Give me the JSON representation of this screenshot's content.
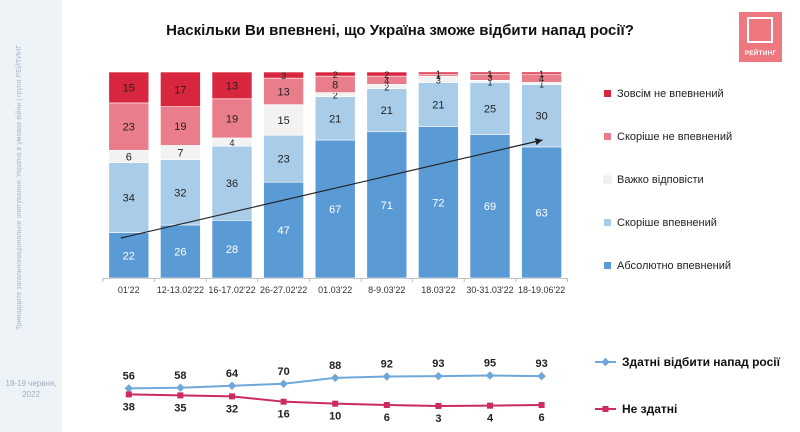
{
  "title": "Наскільки Ви впевнені, що Україна зможе відбити напад росії?",
  "logo_text": "РЕЙТИНГ",
  "sidebar": {
    "caption": "Тринадцяте загальнонаціональне опитування: Україна в умовах війни | група РЕЙТИНГ",
    "date": "18-19 червня, 2022"
  },
  "colors": {
    "abs_yes": "#5b9bd5",
    "rather_yes": "#a9cde9",
    "hard": "#f2f2f2",
    "rather_no": "#e97d8c",
    "abs_no": "#d7263d",
    "line_yes": "#6fa8d8",
    "line_no": "#cc2b5e"
  },
  "chart_data": [
    {
      "type": "bar",
      "stacked": true,
      "categories": [
        "01'22",
        "12-13.02'22",
        "16-17.02'22",
        "26-27.02'22",
        "01.03'22",
        "8-9.03'22",
        "18.03'22",
        "30-31.03'22",
        "18-19.06'22"
      ],
      "series": [
        {
          "name": "Абсолютно впевнений",
          "color": "#5b9bd5",
          "values": [
            22,
            26,
            28,
            47,
            67,
            71,
            72,
            69,
            63
          ]
        },
        {
          "name": "Скоріше впевнений",
          "color": "#a9cde9",
          "values": [
            34,
            32,
            36,
            23,
            21,
            21,
            21,
            25,
            30
          ]
        },
        {
          "name": "Важко відповісти",
          "color": "#f2f2f2",
          "values": [
            6,
            7,
            4,
            15,
            2,
            2,
            3,
            1,
            1
          ]
        },
        {
          "name": "Скоріше не впевнений",
          "color": "#e97d8c",
          "values": [
            23,
            19,
            19,
            13,
            8,
            4,
            1,
            3,
            4
          ]
        },
        {
          "name": "Зовсім не впевнений",
          "color": "#d7263d",
          "values": [
            15,
            17,
            13,
            3,
            2,
            2,
            1,
            1,
            1
          ]
        }
      ],
      "legend_order": [
        "Зовсім не впевнений",
        "Скоріше не впевнений",
        "Важко відповісти",
        "Скоріше впевнений",
        "Абсолютно впевнений"
      ],
      "legend": "right",
      "ylim": [
        0,
        100
      ],
      "trend_arrow": true
    },
    {
      "type": "line",
      "categories": [
        "01'22",
        "12-13.02'22",
        "16-17.02'22",
        "26-27.02'22",
        "01.03'22",
        "8-9.03'22",
        "18.03'22",
        "30-31.03'22",
        "18-19.06'22"
      ],
      "series": [
        {
          "name": "Здатні відбити напад росії",
          "color": "#6fa8d8",
          "values": [
            56,
            58,
            64,
            70,
            88,
            92,
            93,
            95,
            93
          ]
        },
        {
          "name": "Не здатні",
          "color": "#cc2b5e",
          "values": [
            38,
            35,
            32,
            16,
            10,
            6,
            3,
            4,
            6
          ]
        }
      ],
      "legend": "right"
    }
  ]
}
